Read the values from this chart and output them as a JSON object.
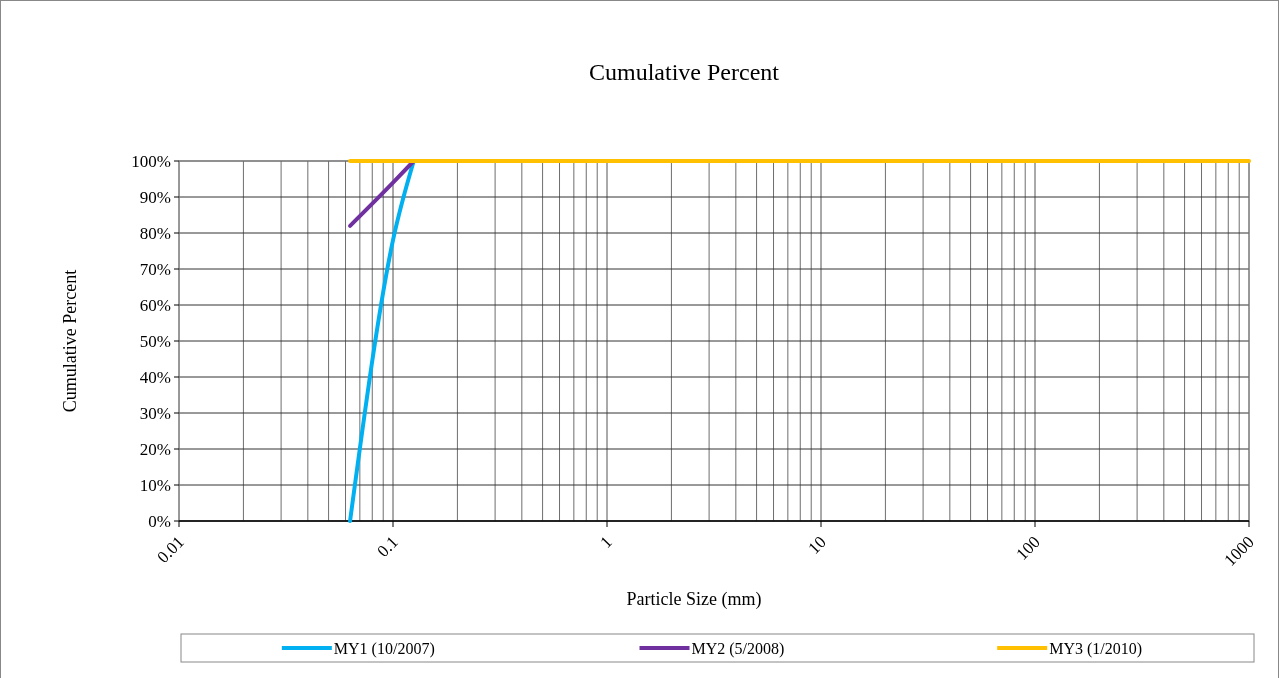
{
  "chart_data": {
    "type": "line",
    "title": "Cumulative Percent",
    "xlabel": "Particle Size (mm)",
    "ylabel": "Cumulative Percent",
    "log": "x",
    "grid": true,
    "legend": "bottom",
    "marker": "none",
    "line_style": "solid",
    "xlim": [
      0.01,
      1000
    ],
    "xticks": [
      0.01,
      {
        "value": 0.02,
        "label": null
      },
      {
        "value": 0.03,
        "label": null
      },
      {
        "value": 0.04,
        "label": null
      },
      {
        "value": 0.05,
        "label": null
      },
      {
        "value": 0.06,
        "label": null
      },
      {
        "value": 0.07,
        "label": null
      },
      {
        "value": 0.08,
        "label": null
      },
      {
        "value": 0.09,
        "label": null
      },
      0.1,
      {
        "value": 0.2,
        "label": null
      },
      {
        "value": 0.3,
        "label": null
      },
      {
        "value": 0.4,
        "label": null
      },
      {
        "value": 0.5,
        "label": null
      },
      {
        "value": 0.6,
        "label": null
      },
      {
        "value": 0.7,
        "label": null
      },
      {
        "value": 0.8,
        "label": null
      },
      {
        "value": 0.9,
        "label": null
      },
      1,
      {
        "value": 2,
        "label": null
      },
      {
        "value": 3,
        "label": null
      },
      {
        "value": 4,
        "label": null
      },
      {
        "value": 5,
        "label": null
      },
      {
        "value": 6,
        "label": null
      },
      {
        "value": 7,
        "label": null
      },
      {
        "value": 8,
        "label": null
      },
      {
        "value": 9,
        "label": null
      },
      10,
      {
        "value": 20,
        "label": null
      },
      {
        "value": 30,
        "label": null
      },
      {
        "value": 40,
        "label": null
      },
      {
        "value": 50,
        "label": null
      },
      {
        "value": 60,
        "label": null
      },
      {
        "value": 70,
        "label": null
      },
      {
        "value": 80,
        "label": null
      },
      {
        "value": 90,
        "label": null
      },
      100,
      {
        "value": 200,
        "label": null
      },
      {
        "value": 300,
        "label": null
      },
      {
        "value": 400,
        "label": null
      },
      {
        "value": 500,
        "label": null
      },
      {
        "value": 600,
        "label": null
      },
      {
        "value": 700,
        "label": null
      },
      {
        "value": 800,
        "label": null
      },
      {
        "value": 900,
        "label": null
      },
      1000
    ],
    "ylim": [
      0,
      100
    ],
    "yticks": [
      {
        "value": 0,
        "label": "0%"
      },
      {
        "value": 10,
        "label": "10%"
      },
      {
        "value": 20,
        "label": "20%"
      },
      {
        "value": 30,
        "label": "30%"
      },
      {
        "value": 40,
        "label": "40%"
      },
      {
        "value": 50,
        "label": "50%"
      },
      {
        "value": 60,
        "label": "60%"
      },
      {
        "value": 70,
        "label": "70%"
      },
      {
        "value": 80,
        "label": "80%"
      },
      {
        "value": 90,
        "label": "90%"
      },
      {
        "value": 100,
        "label": "100%"
      }
    ],
    "series": [
      {
        "name": "MY1 (10/2007)",
        "color": "#00b0f0",
        "x": [
          0.063,
          0.1,
          0.125
        ],
        "values": [
          0,
          78,
          100
        ]
      },
      {
        "name": "MY2 (5/2008)",
        "color": "#7030a0",
        "x": [
          0.063,
          0.1,
          0.125
        ],
        "values": [
          82,
          94,
          100
        ]
      },
      {
        "name": "MY3 (1/2010)",
        "color": "#ffc000",
        "x": [
          0.063,
          1000
        ],
        "values": [
          100,
          100
        ]
      }
    ]
  }
}
